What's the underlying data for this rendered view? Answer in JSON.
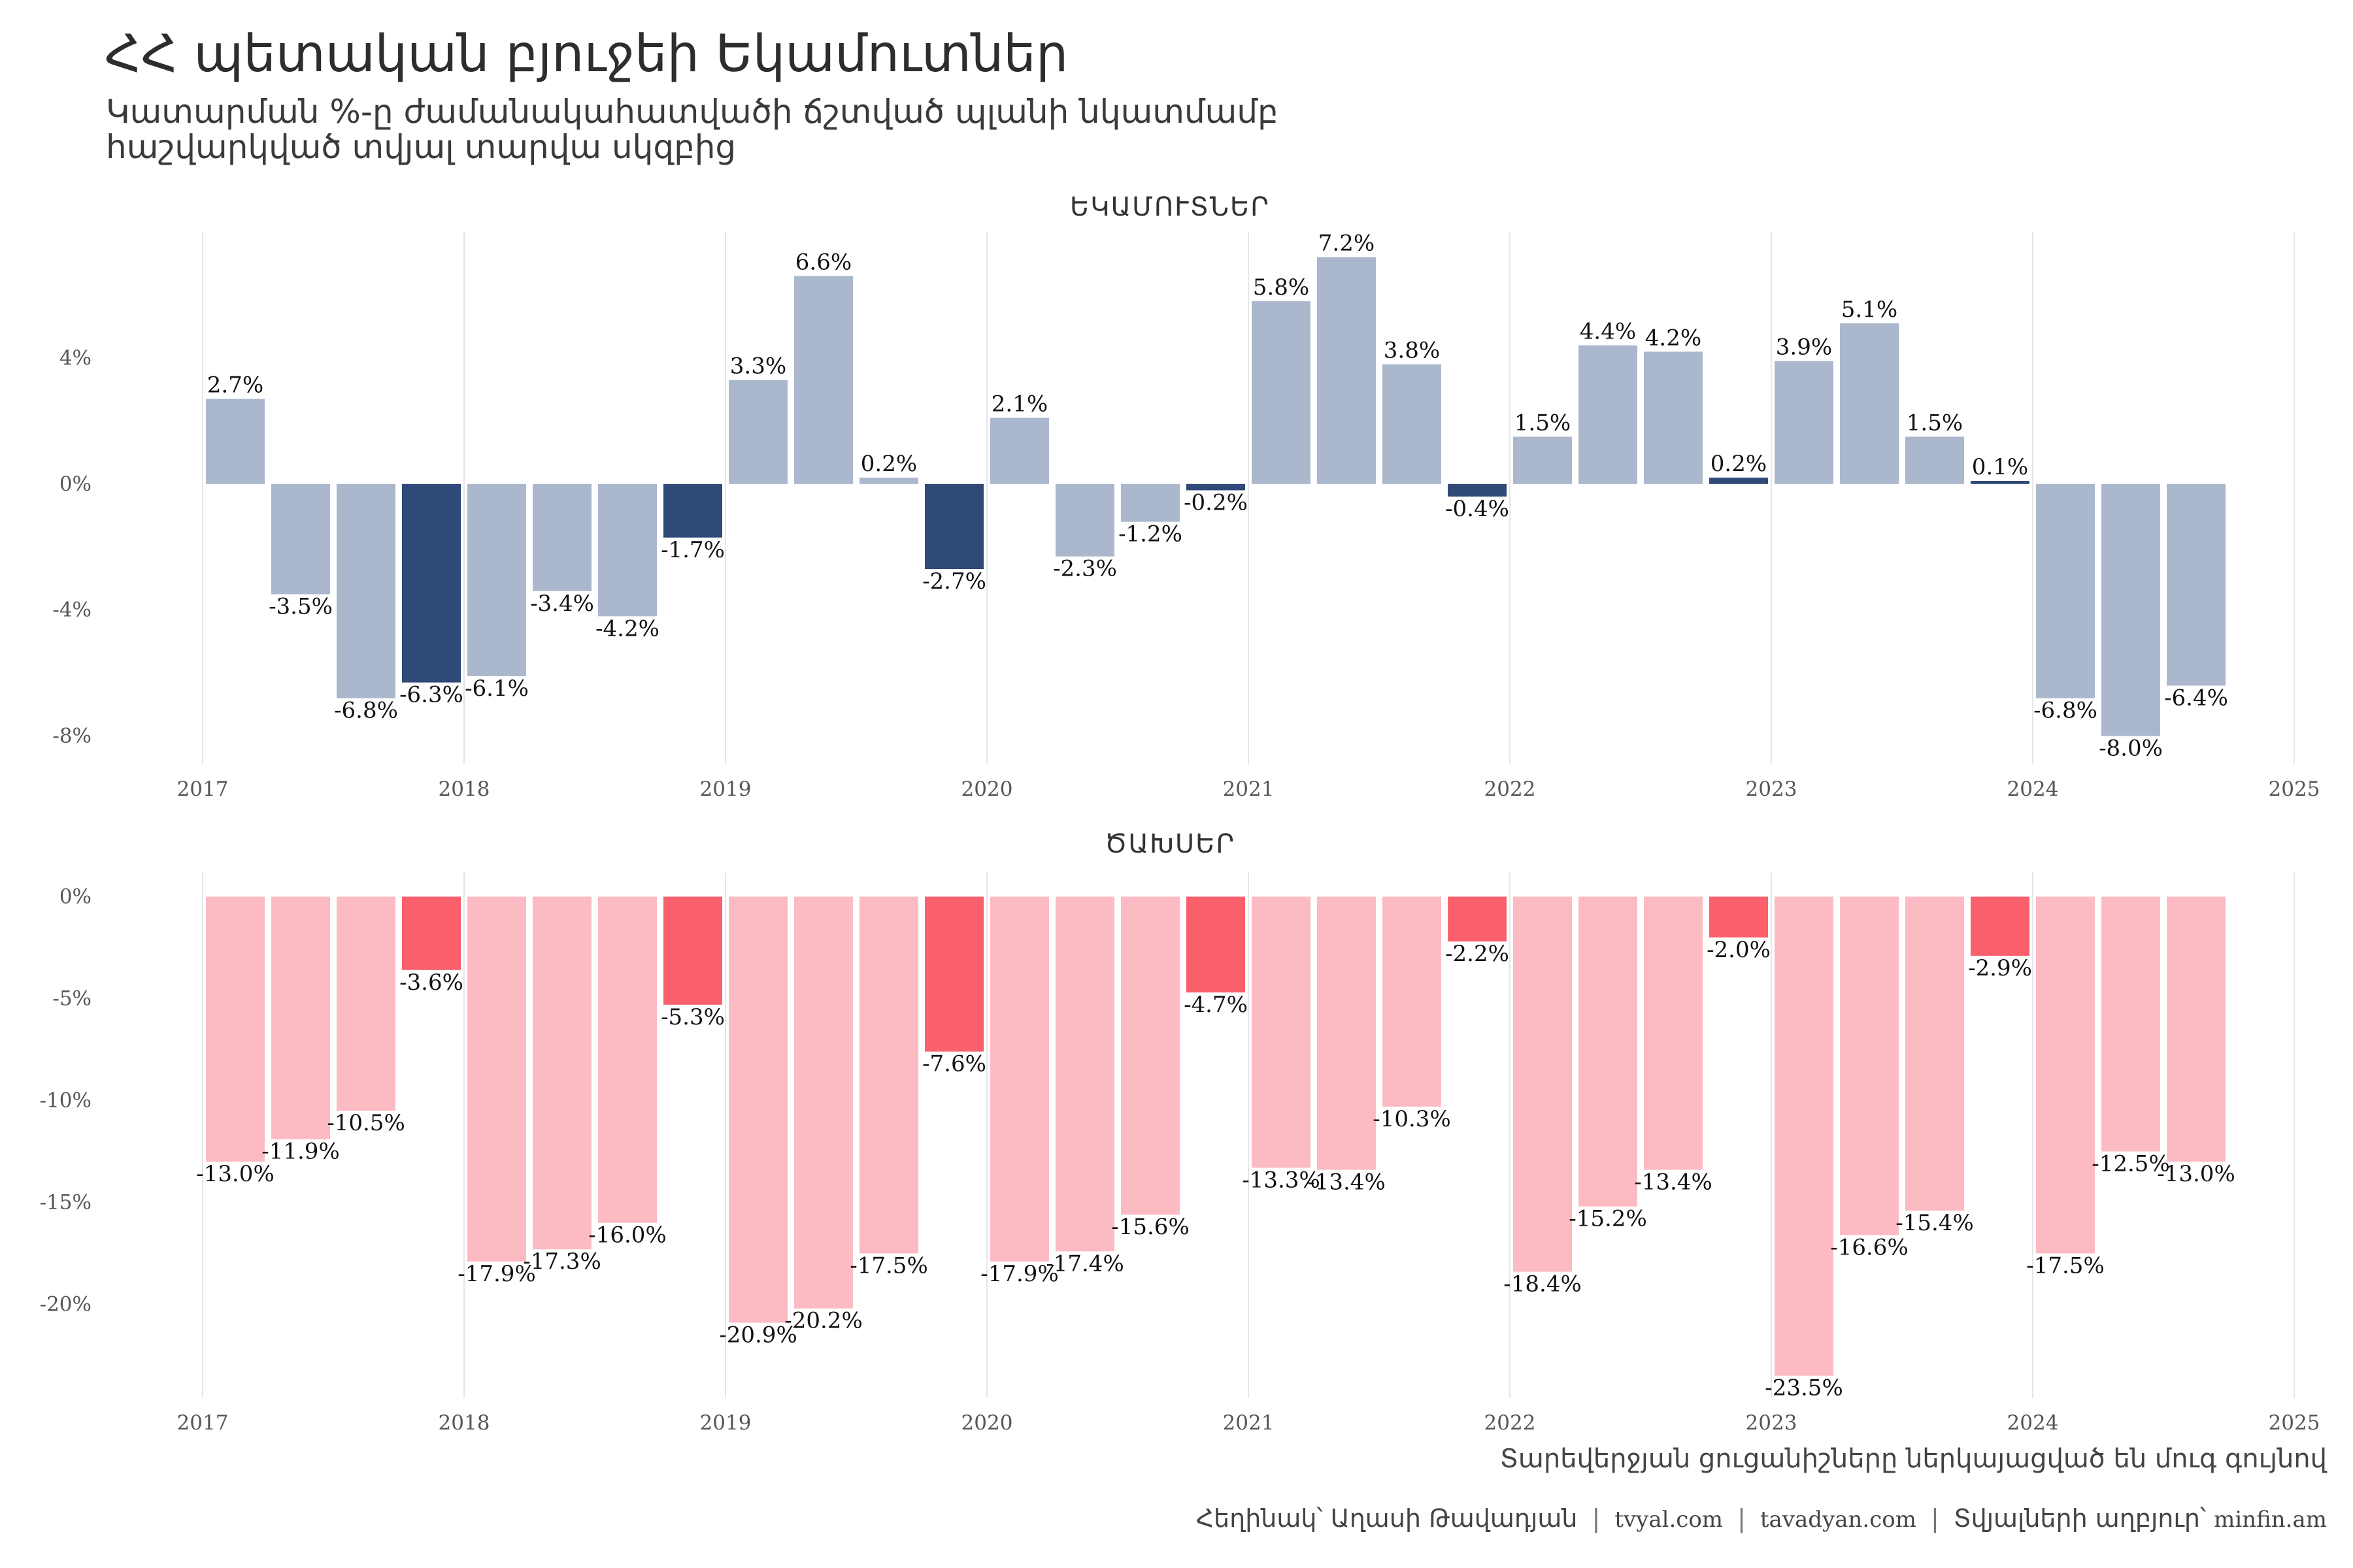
{
  "title": "ՀՀ պետական բյուջեի Եկամուտներ",
  "subtitle_line1": "Կատարման %-ը ժամանակահատվածի ճշտված պլանի նկատմամբ",
  "subtitle_line2": "հաշվարկված տվյալ տարվա սկզբից",
  "note": "Տարեվերջյան ցուցանիշները ներկայացված են մուգ գույնով",
  "footer": {
    "author": "Հեղինակ՝ Աղասի Թավադյան",
    "site1": "tvyal.com",
    "site2": "tavadyan.com",
    "source_label": "Տվյալների աղբյուր՝",
    "source": "minfin.am"
  },
  "colors": {
    "revenue_light": "#abb7cc",
    "revenue_dark": "#2f4a78",
    "expense_light": "#fcbbc3",
    "expense_dark": "#fa606c"
  },
  "chart_data": [
    {
      "type": "bar",
      "title": "ԵԿԱՄՈՒՏՆԵՐ",
      "x_ticks": [
        "2017",
        "2018",
        "2019",
        "2020",
        "2021",
        "2022",
        "2023",
        "2024",
        "2025"
      ],
      "y_ticks": [
        "4%",
        "0%",
        "-4%",
        "-8%"
      ],
      "y_tick_values": [
        4,
        0,
        -4,
        -8
      ],
      "ylim": [
        -8.9,
        8.0
      ],
      "unit": "%",
      "values": [
        2.7,
        -3.5,
        -6.8,
        -6.3,
        -6.1,
        -3.4,
        -4.2,
        -1.7,
        3.3,
        6.6,
        0.2,
        -2.7,
        2.1,
        -2.3,
        -1.2,
        -0.2,
        5.8,
        7.2,
        3.8,
        -0.4,
        1.5,
        4.4,
        4.2,
        0.2,
        3.9,
        5.1,
        1.5,
        0.1,
        -6.8,
        -8.0,
        -6.4
      ],
      "labels": [
        "2.7%",
        "-3.5%",
        "-6.8%",
        "-6.3%",
        "-6.1%",
        "-3.4%",
        "-4.2%",
        "-1.7%",
        "3.3%",
        "6.6%",
        "0.2%",
        "-2.7%",
        "2.1%",
        "-2.3%",
        "-1.2%",
        "-0.2%",
        "5.8%",
        "7.2%",
        "3.8%",
        "-0.4%",
        "1.5%",
        "4.4%",
        "4.2%",
        "0.2%",
        "3.9%",
        "5.1%",
        "1.5%",
        "0.1%",
        "-6.8%",
        "-8.0%",
        "-6.4%"
      ],
      "year_end": [
        false,
        false,
        false,
        true,
        false,
        false,
        false,
        true,
        false,
        false,
        false,
        true,
        false,
        false,
        false,
        true,
        false,
        false,
        false,
        true,
        false,
        false,
        false,
        true,
        false,
        false,
        false,
        true,
        false,
        false,
        false
      ]
    },
    {
      "type": "bar",
      "title": "ԾԱԽՍԵՐ",
      "x_ticks": [
        "2017",
        "2018",
        "2019",
        "2020",
        "2021",
        "2022",
        "2023",
        "2024",
        "2025"
      ],
      "y_ticks": [
        "0%",
        "-5%",
        "-10%",
        "-15%",
        "-20%"
      ],
      "y_tick_values": [
        0,
        -5,
        -10,
        -15,
        -20
      ],
      "ylim": [
        -24.6,
        1.2
      ],
      "unit": "%",
      "values": [
        -13.0,
        -11.9,
        -10.5,
        -3.6,
        -17.9,
        -17.3,
        -16.0,
        -5.3,
        -20.9,
        -20.2,
        -17.5,
        -7.6,
        -17.9,
        -17.4,
        -15.6,
        -4.7,
        -13.3,
        -13.4,
        -10.3,
        -2.2,
        -18.4,
        -15.2,
        -13.4,
        -2.0,
        -23.5,
        -16.6,
        -15.4,
        -2.9,
        -17.5,
        -12.5,
        -13.0
      ],
      "labels": [
        "-13.0%",
        "-11.9%",
        "-10.5%",
        "-3.6%",
        "-17.9%",
        "-17.3%",
        "-16.0%",
        "-5.3%",
        "-20.9%",
        "-20.2%",
        "-17.5%",
        "-7.6%",
        "-17.9%",
        "-17.4%",
        "-15.6%",
        "-4.7%",
        "-13.3%",
        "-13.4%",
        "-10.3%",
        "-2.2%",
        "-18.4%",
        "-15.2%",
        "-13.4%",
        "-2.0%",
        "-23.5%",
        "-16.6%",
        "-15.4%",
        "-2.9%",
        "-17.5%",
        "-12.5%",
        "-13.0%"
      ],
      "year_end": [
        false,
        false,
        false,
        true,
        false,
        false,
        false,
        true,
        false,
        false,
        false,
        true,
        false,
        false,
        false,
        true,
        false,
        false,
        false,
        true,
        false,
        false,
        false,
        true,
        false,
        false,
        false,
        true,
        false,
        false,
        false
      ]
    }
  ]
}
